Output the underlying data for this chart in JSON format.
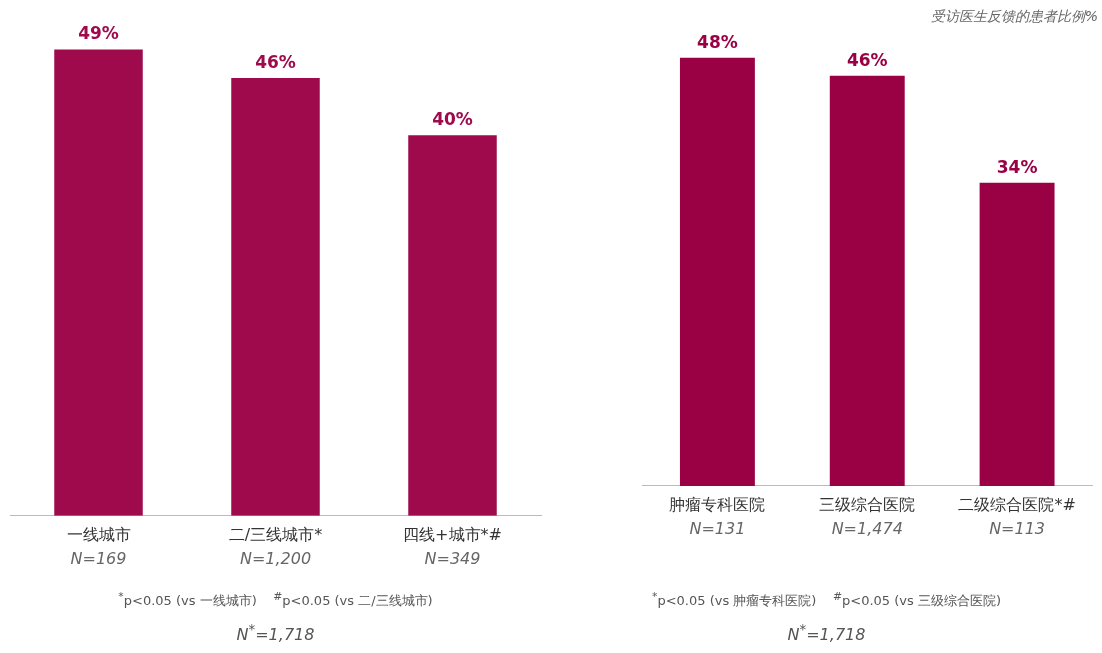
{
  "chart_data": [
    {
      "type": "bar",
      "categories": [
        "一线城市\nN=169",
        "二/三线城市*\nN=1,200",
        "四线+城市*#\nN=349"
      ],
      "values": [
        49,
        46,
        40
      ],
      "value_labels": [
        "49%",
        "46%",
        "40%"
      ],
      "color": "#9e0a4c",
      "grid": false,
      "legend": false,
      "tick_labels": "x",
      "annotations": [
        "$^{*}$p<0.05 (vs 一线城市)    $^{#}$p<0.05 (vs 二/三线城市)",
        "N$^{*}$=1,718"
      ]
    },
    {
      "type": "bar",
      "ylabel": "受访医生反馈的患者比例%",
      "categories": [
        "肿瘤专科医院\nN=131",
        "三级综合医院\nN=1,474",
        "二级综合医院*#\nN=113"
      ],
      "values": [
        48,
        46,
        34
      ],
      "value_labels": [
        "48%",
        "46%",
        "34%"
      ],
      "color": "#9a0044",
      "grid": false,
      "legend": false,
      "tick_labels": "x",
      "annotations": [
        "$^{*}$p<0.05 (vs 肿瘤专科医院)    $^{#}$p<0.05 (vs 三级综合医院)",
        "N$^{*}$=1,718"
      ]
    }
  ]
}
